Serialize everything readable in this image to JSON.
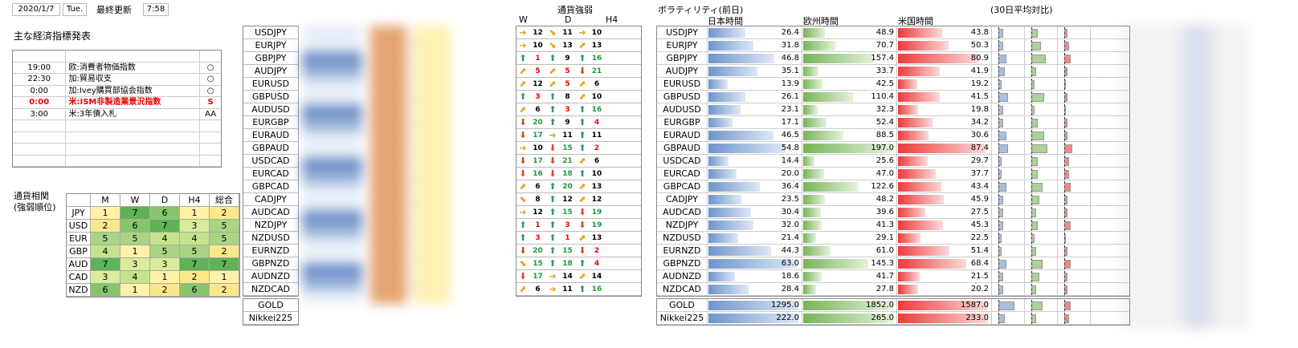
{
  "header": {
    "date": "2020/1/7",
    "weekday": "Tue.",
    "updated_label": "最終更新",
    "time": "7:58"
  },
  "events": {
    "title": "主な経済指標発表",
    "rows": [
      {
        "time": "",
        "name": "",
        "mark": ""
      },
      {
        "time": "19:00",
        "name": "欧:消費者物価指数",
        "mark": "○"
      },
      {
        "time": "22:30",
        "name": "加:貿易収支",
        "mark": "○"
      },
      {
        "time": "0:00",
        "name": "加:Ivey購買部協会指数",
        "mark": "○"
      },
      {
        "time": "0:00",
        "name": "米:ISM非製造業景況指数",
        "mark": "S",
        "hl": true
      },
      {
        "time": "3:00",
        "name": "米:3年債入札",
        "mark": "AA"
      },
      {
        "time": "",
        "name": "",
        "mark": ""
      },
      {
        "time": "",
        "name": "",
        "mark": ""
      },
      {
        "time": "",
        "name": "",
        "mark": ""
      },
      {
        "time": "",
        "name": "",
        "mark": ""
      }
    ]
  },
  "correlation": {
    "title1": "通貨相関",
    "title2": "(強弱順位)",
    "headers": [
      "M",
      "W",
      "D",
      "H4",
      "総合"
    ],
    "rows": [
      {
        "c": "JPY",
        "v": [
          1,
          7,
          6,
          1,
          2
        ]
      },
      {
        "c": "USD",
        "v": [
          2,
          6,
          7,
          3,
          5
        ]
      },
      {
        "c": "EUR",
        "v": [
          5,
          5,
          4,
          4,
          5
        ]
      },
      {
        "c": "GBP",
        "v": [
          4,
          1,
          5,
          5,
          2
        ]
      },
      {
        "c": "AUD",
        "v": [
          7,
          3,
          3,
          7,
          7
        ]
      },
      {
        "c": "CAD",
        "v": [
          3,
          4,
          1,
          2,
          1
        ]
      },
      {
        "c": "NZD",
        "v": [
          6,
          1,
          2,
          6,
          2
        ]
      }
    ],
    "colors": {
      "1": "#fff2a8",
      "2": "#fbe88a",
      "3": "#d8ec9c",
      "4": "#c6e28c",
      "5": "#a9d482",
      "6": "#86c56c",
      "7": "#5fb257"
    }
  },
  "pairs": [
    "USDJPY",
    "EURJPY",
    "GBPJPY",
    "AUDJPY",
    "EURUSD",
    "GBPUSD",
    "AUDUSD",
    "EURGBP",
    "EURAUD",
    "GBPAUD",
    "USDCAD",
    "EURCAD",
    "GBPCAD",
    "CADJPY",
    "AUDCAD",
    "NZDJPY",
    "NZDUSD",
    "EURNZD",
    "GBPNZD",
    "AUDNZD",
    "NZDCAD"
  ],
  "extra_pairs": [
    "GOLD",
    "Nikkei225"
  ],
  "strength": {
    "title": "通貨強弱",
    "headers": [
      "W",
      "D",
      "H4"
    ],
    "icons": {
      "u": "⬆",
      "d": "⬇",
      "r": "➜",
      "ur": "⬈",
      "dr": "⬊"
    },
    "iconColors": {
      "u": "#2e9a6a",
      "d": "#d9461e",
      "r": "#e8a020",
      "ur": "#e8a020",
      "dr": "#e8a020"
    },
    "rows": [
      [
        [
          "r",
          12
        ],
        [
          "dr",
          11
        ],
        [
          "r",
          10
        ]
      ],
      [
        [
          "r",
          10
        ],
        [
          "dr",
          13
        ],
        [
          "ur",
          13
        ]
      ],
      [
        [
          "u",
          1
        ],
        [
          "u",
          9
        ],
        [
          "u",
          16
        ]
      ],
      [
        [
          "ur",
          5
        ],
        [
          "ur",
          5
        ],
        [
          "d",
          21
        ]
      ],
      [
        [
          "ur",
          12
        ],
        [
          "ur",
          5
        ],
        [
          "ur",
          6
        ]
      ],
      [
        [
          "u",
          3
        ],
        [
          "u",
          8
        ],
        [
          "ur",
          10
        ]
      ],
      [
        [
          "ur",
          6
        ],
        [
          "u",
          3
        ],
        [
          "u",
          16
        ]
      ],
      [
        [
          "d",
          20
        ],
        [
          "u",
          9
        ],
        [
          "u",
          4
        ]
      ],
      [
        [
          "d",
          17
        ],
        [
          "r",
          11
        ],
        [
          "u",
          11
        ]
      ],
      [
        [
          "r",
          10
        ],
        [
          "d",
          15
        ],
        [
          "u",
          2
        ]
      ],
      [
        [
          "d",
          17
        ],
        [
          "d",
          21
        ],
        [
          "ur",
          6
        ]
      ],
      [
        [
          "d",
          16
        ],
        [
          "d",
          18
        ],
        [
          "u",
          10
        ]
      ],
      [
        [
          "ur",
          6
        ],
        [
          "u",
          20
        ],
        [
          "ur",
          13
        ]
      ],
      [
        [
          "dr",
          8
        ],
        [
          "u",
          12
        ],
        [
          "ur",
          12
        ]
      ],
      [
        [
          "r",
          12
        ],
        [
          "u",
          15
        ],
        [
          "d",
          19
        ]
      ],
      [
        [
          "u",
          1
        ],
        [
          "u",
          3
        ],
        [
          "d",
          19
        ]
      ],
      [
        [
          "u",
          3
        ],
        [
          "u",
          1
        ],
        [
          "ur",
          13
        ]
      ],
      [
        [
          "d",
          20
        ],
        [
          "u",
          15
        ],
        [
          "d",
          2
        ]
      ],
      [
        [
          "dr",
          15
        ],
        [
          "u",
          18
        ],
        [
          "u",
          4
        ]
      ],
      [
        [
          "d",
          17
        ],
        [
          "r",
          14
        ],
        [
          "ur",
          14
        ]
      ],
      [
        [
          "ur",
          6
        ],
        [
          "r",
          11
        ],
        [
          "u",
          16
        ]
      ]
    ],
    "numColors": {
      "1": "#e00",
      "2": "#e00",
      "3": "#e00",
      "4": "#e00",
      "5": "#e00",
      "15": "#1a9a3a",
      "16": "#1a9a3a",
      "17": "#1a9a3a",
      "18": "#1a9a3a",
      "19": "#1a9a3a",
      "20": "#1a9a3a",
      "21": "#1a9a3a"
    }
  },
  "volatility": {
    "title": "ボラティリティ(前日)",
    "subtitle": "(30日平均対比)",
    "headers": [
      "日本時間",
      "欧州時間",
      "米国時間"
    ],
    "rows": [
      [
        26.4,
        48.9,
        43.8
      ],
      [
        31.8,
        70.7,
        50.3
      ],
      [
        46.8,
        157.4,
        80.9
      ],
      [
        35.1,
        33.7,
        41.9
      ],
      [
        13.9,
        42.5,
        19.2
      ],
      [
        26.1,
        110.4,
        41.5
      ],
      [
        23.1,
        32.3,
        19.8
      ],
      [
        17.1,
        52.4,
        34.2
      ],
      [
        46.5,
        88.5,
        30.6
      ],
      [
        54.8,
        197.0,
        87.4
      ],
      [
        14.4,
        25.6,
        29.7
      ],
      [
        20.0,
        47.0,
        37.7
      ],
      [
        36.4,
        122.6,
        43.4
      ],
      [
        23.5,
        48.2,
        45.9
      ],
      [
        30.4,
        39.6,
        27.5
      ],
      [
        32.0,
        41.3,
        45.3
      ],
      [
        21.4,
        29.1,
        22.5
      ],
      [
        44.3,
        61.0,
        51.4
      ],
      [
        63.0,
        145.3,
        68.4
      ],
      [
        18.6,
        41.7,
        21.5
      ],
      [
        28.4,
        27.8,
        20.2
      ]
    ],
    "extra": [
      [
        1295.0,
        1852.0,
        1587.0
      ],
      [
        222.0,
        265.0,
        233.0
      ]
    ],
    "ratios": [
      [
        0.3,
        0.4,
        0.2
      ],
      [
        0.3,
        0.6,
        0.3
      ],
      [
        0.5,
        0.9,
        0.4
      ],
      [
        0.4,
        0.3,
        0.2
      ],
      [
        0.2,
        0.2,
        0.1
      ],
      [
        0.6,
        0.8,
        0.2
      ],
      [
        0.3,
        0.2,
        0.1
      ],
      [
        0.3,
        0.4,
        0.2
      ],
      [
        0.5,
        0.8,
        0.2
      ],
      [
        0.6,
        1.0,
        0.5
      ],
      [
        0.2,
        0.4,
        0.3
      ],
      [
        0.2,
        0.4,
        0.3
      ],
      [
        0.5,
        0.7,
        0.4
      ],
      [
        0.3,
        0.5,
        0.2
      ],
      [
        0.3,
        0.3,
        0.2
      ],
      [
        0.3,
        0.4,
        0.4
      ],
      [
        0.2,
        0.2,
        0.1
      ],
      [
        0.2,
        0.3,
        0.2
      ],
      [
        0.5,
        0.7,
        0.4
      ],
      [
        0.3,
        0.5,
        0.2
      ],
      [
        0.3,
        0.3,
        0.2
      ]
    ],
    "extra_ratios": [
      [
        1.0,
        0.7,
        0.4
      ],
      [
        0.4,
        0.3,
        0.3
      ]
    ],
    "colors": {
      "jp": "#6d95cc",
      "eu": "#76b457",
      "us": "#ee3a3a"
    }
  }
}
